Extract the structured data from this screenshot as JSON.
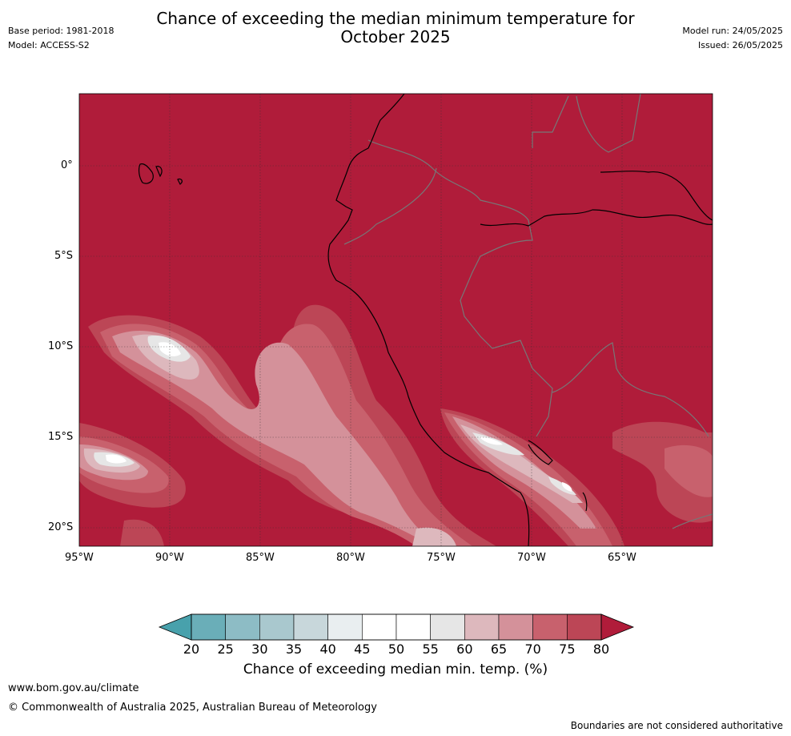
{
  "header": {
    "title_line1": "Chance of exceeding the median minimum temperature for",
    "title_line2": "October 2025",
    "base_period": "Base period: 1981-2018",
    "model": "Model: ACCESS-S2",
    "model_run": "Model run: 24/05/2025",
    "issued": "Issued: 26/05/2025"
  },
  "map": {
    "lat_labels": [
      "0°",
      "5°S",
      "10°S",
      "15°S",
      "20°S"
    ],
    "lon_labels": [
      "95°W",
      "90°W",
      "85°W",
      "80°W",
      "75°W",
      "70°W",
      "65°W"
    ]
  },
  "colorbar": {
    "ticks": [
      "20",
      "25",
      "30",
      "35",
      "40",
      "45",
      "50",
      "55",
      "60",
      "65",
      "70",
      "75",
      "80"
    ],
    "colors": [
      "#48a1ac",
      "#6aaeb8",
      "#8dbcc5",
      "#a9c8ce",
      "#c8d7db",
      "#e9eef0",
      "#ffffff",
      "#ffffff",
      "#e6e6e6",
      "#ddb8bd",
      "#d4919a",
      "#c8616d",
      "#bc4656",
      "#b01c3a"
    ],
    "label": "Chance of exceeding median min. temp. (%)"
  },
  "footer": {
    "url": "www.bom.gov.au/climate",
    "copyright": "© Commonwealth of Australia 2025, Australian Bureau of Meteorology",
    "disclaimer": "Boundaries are not considered authoritative"
  }
}
